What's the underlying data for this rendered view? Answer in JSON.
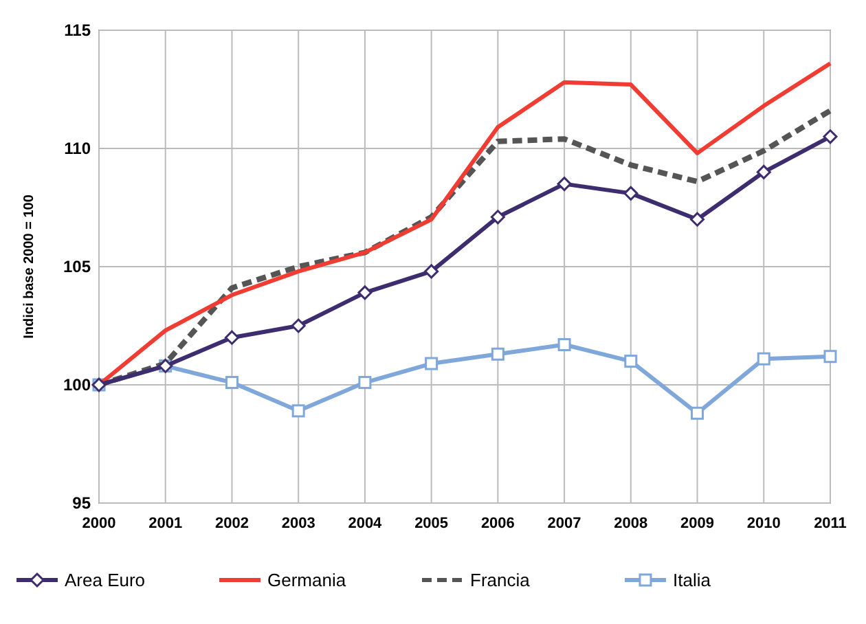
{
  "chart_data": {
    "type": "line",
    "ylabel": "Indici base 2000 = 100",
    "categories": [
      "2000",
      "2001",
      "2002",
      "2003",
      "2004",
      "2005",
      "2006",
      "2007",
      "2008",
      "2009",
      "2010",
      "2011"
    ],
    "ylim": [
      95,
      115
    ],
    "yticks": [
      95,
      100,
      105,
      110,
      115
    ],
    "grid": true,
    "legend": "bottom",
    "series": [
      {
        "name": "Area Euro",
        "color": "#3d2c6e",
        "marker": "diamond",
        "line_style": "solid",
        "values": [
          100,
          100.8,
          102.0,
          102.5,
          103.9,
          104.8,
          107.1,
          108.5,
          108.1,
          107.0,
          109.0,
          110.5
        ]
      },
      {
        "name": "Germania",
        "color": "#f03c32",
        "marker": "none",
        "line_style": "solid",
        "values": [
          100,
          102.3,
          103.8,
          104.8,
          105.6,
          107.0,
          110.9,
          112.8,
          112.7,
          109.8,
          111.8,
          113.6
        ]
      },
      {
        "name": "Francia",
        "color": "#555555",
        "marker": "none",
        "line_style": "dashed",
        "values": [
          100,
          100.9,
          104.1,
          105.0,
          105.6,
          107.1,
          110.3,
          110.4,
          109.3,
          108.6,
          109.9,
          111.6
        ]
      },
      {
        "name": "Italia",
        "color": "#7fa7d9",
        "marker": "square",
        "line_style": "solid",
        "values": [
          100,
          100.8,
          100.1,
          98.9,
          100.1,
          100.9,
          101.3,
          101.7,
          101.0,
          98.8,
          101.1,
          101.2
        ]
      }
    ]
  }
}
